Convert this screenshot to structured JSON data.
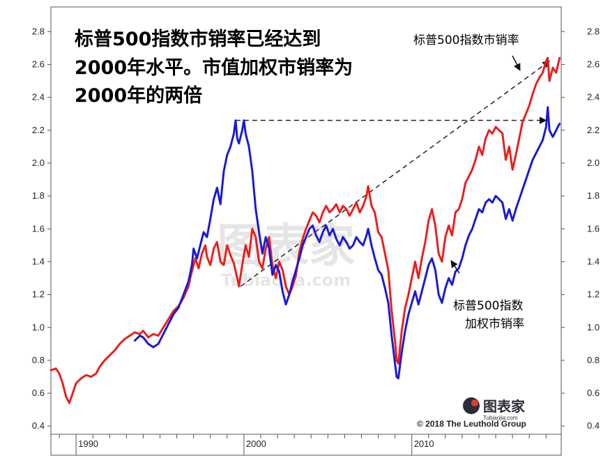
{
  "chart_data": {
    "type": "line",
    "title_lines": [
      "标普500指数市销率已经达到",
      "2000年水平。市值加权市销率为",
      "2000年的两倍"
    ],
    "annotations": {
      "red_label": "标普500指数市销率",
      "blue_label_line1": "标普500指数",
      "blue_label_line2": "加权市销率"
    },
    "copyright": "© 2018 The Leuthold Group",
    "watermark": {
      "brand": "图表家",
      "url": "Tubiaojia.com"
    },
    "xlim": [
      1988.5,
      2018.9
    ],
    "ylim": [
      0.35,
      2.95
    ],
    "y_ticks": [
      0.4,
      0.6,
      0.8,
      1.0,
      1.2,
      1.4,
      1.6,
      1.8,
      2.0,
      2.2,
      2.4,
      2.6,
      2.8
    ],
    "x_tick_labels": [
      {
        "year": 1990,
        "label": "1990"
      },
      {
        "year": 2000,
        "label": "2000"
      },
      {
        "year": 2010,
        "label": "2010"
      }
    ],
    "grid": false,
    "colors": {
      "red_series": "#e8201d",
      "blue_series": "#1a1ad6",
      "reference_lines": "#222222"
    },
    "series": [
      {
        "key": "red",
        "points": [
          [
            1988.5,
            0.74
          ],
          [
            1988.8,
            0.75
          ],
          [
            1989.0,
            0.72
          ],
          [
            1989.2,
            0.66
          ],
          [
            1989.4,
            0.58
          ],
          [
            1989.6,
            0.54
          ],
          [
            1989.8,
            0.6
          ],
          [
            1990.0,
            0.66
          ],
          [
            1990.3,
            0.69
          ],
          [
            1990.6,
            0.71
          ],
          [
            1990.9,
            0.7
          ],
          [
            1991.2,
            0.72
          ],
          [
            1991.4,
            0.76
          ],
          [
            1991.7,
            0.8
          ],
          [
            1992.0,
            0.83
          ],
          [
            1992.3,
            0.86
          ],
          [
            1992.6,
            0.9
          ],
          [
            1992.9,
            0.93
          ],
          [
            1993.2,
            0.95
          ],
          [
            1993.5,
            0.97
          ],
          [
            1993.8,
            0.96
          ],
          [
            1994.0,
            0.98
          ],
          [
            1994.3,
            0.94
          ],
          [
            1994.6,
            0.96
          ],
          [
            1994.9,
            0.95
          ],
          [
            1995.2,
            1.0
          ],
          [
            1995.5,
            1.05
          ],
          [
            1995.8,
            1.1
          ],
          [
            1996.1,
            1.13
          ],
          [
            1996.4,
            1.18
          ],
          [
            1996.7,
            1.25
          ],
          [
            1996.8,
            1.3
          ],
          [
            1997.0,
            1.38
          ],
          [
            1997.1,
            1.42
          ],
          [
            1997.3,
            1.36
          ],
          [
            1997.5,
            1.45
          ],
          [
            1997.7,
            1.5
          ],
          [
            1997.8,
            1.43
          ],
          [
            1998.0,
            1.38
          ],
          [
            1998.2,
            1.48
          ],
          [
            1998.4,
            1.52
          ],
          [
            1998.6,
            1.4
          ],
          [
            1998.8,
            1.38
          ],
          [
            1999.0,
            1.5
          ],
          [
            1999.2,
            1.44
          ],
          [
            1999.4,
            1.39
          ],
          [
            1999.6,
            1.3
          ],
          [
            1999.7,
            1.25
          ],
          [
            1999.9,
            1.38
          ],
          [
            2000.1,
            1.5
          ],
          [
            2000.3,
            1.43
          ],
          [
            2000.5,
            1.6
          ],
          [
            2000.7,
            1.55
          ],
          [
            2000.9,
            1.4
          ],
          [
            2001.1,
            1.36
          ],
          [
            2001.3,
            1.48
          ],
          [
            2001.5,
            1.55
          ],
          [
            2001.7,
            1.38
          ],
          [
            2001.9,
            1.3
          ],
          [
            2002.1,
            1.4
          ],
          [
            2002.3,
            1.35
          ],
          [
            2002.5,
            1.25
          ],
          [
            2002.7,
            1.2
          ],
          [
            2002.9,
            1.25
          ],
          [
            2003.1,
            1.32
          ],
          [
            2003.3,
            1.46
          ],
          [
            2003.5,
            1.54
          ],
          [
            2003.7,
            1.6
          ],
          [
            2003.9,
            1.65
          ],
          [
            2004.1,
            1.7
          ],
          [
            2004.3,
            1.68
          ],
          [
            2004.5,
            1.64
          ],
          [
            2004.7,
            1.7
          ],
          [
            2004.9,
            1.74
          ],
          [
            2005.1,
            1.7
          ],
          [
            2005.3,
            1.72
          ],
          [
            2005.5,
            1.75
          ],
          [
            2005.7,
            1.7
          ],
          [
            2005.9,
            1.74
          ],
          [
            2006.1,
            1.72
          ],
          [
            2006.3,
            1.68
          ],
          [
            2006.5,
            1.72
          ],
          [
            2006.7,
            1.76
          ],
          [
            2006.9,
            1.7
          ],
          [
            2007.1,
            1.74
          ],
          [
            2007.3,
            1.8
          ],
          [
            2007.4,
            1.86
          ],
          [
            2007.6,
            1.74
          ],
          [
            2007.8,
            1.7
          ],
          [
            2008.0,
            1.58
          ],
          [
            2008.2,
            1.55
          ],
          [
            2008.4,
            1.45
          ],
          [
            2008.6,
            1.35
          ],
          [
            2008.8,
            1.1
          ],
          [
            2009.0,
            0.92
          ],
          [
            2009.1,
            0.8
          ],
          [
            2009.2,
            0.78
          ],
          [
            2009.4,
            0.98
          ],
          [
            2009.6,
            1.12
          ],
          [
            2009.8,
            1.2
          ],
          [
            2010.0,
            1.3
          ],
          [
            2010.2,
            1.4
          ],
          [
            2010.4,
            1.3
          ],
          [
            2010.6,
            1.42
          ],
          [
            2010.8,
            1.52
          ],
          [
            2011.0,
            1.65
          ],
          [
            2011.2,
            1.72
          ],
          [
            2011.4,
            1.62
          ],
          [
            2011.6,
            1.45
          ],
          [
            2011.8,
            1.4
          ],
          [
            2012.0,
            1.55
          ],
          [
            2012.2,
            1.62
          ],
          [
            2012.4,
            1.56
          ],
          [
            2012.6,
            1.7
          ],
          [
            2012.8,
            1.72
          ],
          [
            2013.0,
            1.78
          ],
          [
            2013.2,
            1.88
          ],
          [
            2013.4,
            1.92
          ],
          [
            2013.6,
            1.96
          ],
          [
            2013.8,
            2.02
          ],
          [
            2014.0,
            2.1
          ],
          [
            2014.2,
            2.05
          ],
          [
            2014.4,
            2.15
          ],
          [
            2014.6,
            2.2
          ],
          [
            2014.8,
            2.18
          ],
          [
            2015.0,
            2.22
          ],
          [
            2015.2,
            2.2
          ],
          [
            2015.4,
            2.18
          ],
          [
            2015.6,
            2.02
          ],
          [
            2015.8,
            2.1
          ],
          [
            2016.0,
            1.96
          ],
          [
            2016.2,
            2.05
          ],
          [
            2016.4,
            2.15
          ],
          [
            2016.6,
            2.25
          ],
          [
            2016.8,
            2.3
          ],
          [
            2017.0,
            2.35
          ],
          [
            2017.2,
            2.42
          ],
          [
            2017.4,
            2.48
          ],
          [
            2017.6,
            2.52
          ],
          [
            2017.8,
            2.55
          ],
          [
            2018.0,
            2.62
          ],
          [
            2018.1,
            2.64
          ],
          [
            2018.2,
            2.5
          ],
          [
            2018.4,
            2.58
          ],
          [
            2018.6,
            2.55
          ],
          [
            2018.8,
            2.64
          ]
        ]
      },
      {
        "key": "blue",
        "points": [
          [
            1993.5,
            0.92
          ],
          [
            1993.8,
            0.95
          ],
          [
            1994.0,
            0.94
          ],
          [
            1994.3,
            0.9
          ],
          [
            1994.6,
            0.88
          ],
          [
            1994.9,
            0.9
          ],
          [
            1995.2,
            0.96
          ],
          [
            1995.5,
            1.02
          ],
          [
            1995.8,
            1.08
          ],
          [
            1996.1,
            1.12
          ],
          [
            1996.4,
            1.2
          ],
          [
            1996.7,
            1.28
          ],
          [
            1996.9,
            1.38
          ],
          [
            1997.0,
            1.48
          ],
          [
            1997.2,
            1.42
          ],
          [
            1997.4,
            1.5
          ],
          [
            1997.6,
            1.58
          ],
          [
            1997.8,
            1.55
          ],
          [
            1998.0,
            1.66
          ],
          [
            1998.2,
            1.78
          ],
          [
            1998.4,
            1.85
          ],
          [
            1998.6,
            1.75
          ],
          [
            1998.8,
            1.95
          ],
          [
            1999.0,
            2.05
          ],
          [
            1999.2,
            2.1
          ],
          [
            1999.4,
            2.18
          ],
          [
            1999.5,
            2.26
          ],
          [
            1999.6,
            2.15
          ],
          [
            1999.7,
            2.12
          ],
          [
            1999.9,
            2.2
          ],
          [
            2000.0,
            2.26
          ],
          [
            2000.1,
            2.18
          ],
          [
            2000.3,
            2.1
          ],
          [
            2000.5,
            1.95
          ],
          [
            2000.7,
            1.72
          ],
          [
            2000.9,
            1.58
          ],
          [
            2001.1,
            1.45
          ],
          [
            2001.3,
            1.55
          ],
          [
            2001.5,
            1.48
          ],
          [
            2001.7,
            1.32
          ],
          [
            2001.9,
            1.38
          ],
          [
            2002.1,
            1.34
          ],
          [
            2002.3,
            1.22
          ],
          [
            2002.5,
            1.14
          ],
          [
            2002.7,
            1.2
          ],
          [
            2002.9,
            1.28
          ],
          [
            2003.1,
            1.35
          ],
          [
            2003.3,
            1.42
          ],
          [
            2003.5,
            1.5
          ],
          [
            2003.7,
            1.55
          ],
          [
            2003.9,
            1.6
          ],
          [
            2004.1,
            1.62
          ],
          [
            2004.3,
            1.56
          ],
          [
            2004.5,
            1.52
          ],
          [
            2004.7,
            1.58
          ],
          [
            2004.9,
            1.62
          ],
          [
            2005.1,
            1.56
          ],
          [
            2005.3,
            1.6
          ],
          [
            2005.5,
            1.54
          ],
          [
            2005.7,
            1.5
          ],
          [
            2005.9,
            1.55
          ],
          [
            2006.1,
            1.52
          ],
          [
            2006.3,
            1.48
          ],
          [
            2006.5,
            1.5
          ],
          [
            2006.7,
            1.55
          ],
          [
            2006.9,
            1.52
          ],
          [
            2007.1,
            1.5
          ],
          [
            2007.3,
            1.56
          ],
          [
            2007.4,
            1.6
          ],
          [
            2007.6,
            1.5
          ],
          [
            2007.8,
            1.42
          ],
          [
            2008.0,
            1.35
          ],
          [
            2008.2,
            1.32
          ],
          [
            2008.4,
            1.24
          ],
          [
            2008.6,
            1.15
          ],
          [
            2008.8,
            0.95
          ],
          [
            2009.0,
            0.78
          ],
          [
            2009.1,
            0.7
          ],
          [
            2009.2,
            0.69
          ],
          [
            2009.4,
            0.85
          ],
          [
            2009.6,
            0.98
          ],
          [
            2009.8,
            1.08
          ],
          [
            2010.0,
            1.15
          ],
          [
            2010.2,
            1.22
          ],
          [
            2010.4,
            1.14
          ],
          [
            2010.6,
            1.22
          ],
          [
            2010.8,
            1.3
          ],
          [
            2011.0,
            1.38
          ],
          [
            2011.2,
            1.42
          ],
          [
            2011.4,
            1.35
          ],
          [
            2011.6,
            1.2
          ],
          [
            2011.8,
            1.15
          ],
          [
            2012.0,
            1.24
          ],
          [
            2012.2,
            1.3
          ],
          [
            2012.4,
            1.26
          ],
          [
            2012.6,
            1.34
          ],
          [
            2012.8,
            1.36
          ],
          [
            2013.0,
            1.42
          ],
          [
            2013.2,
            1.5
          ],
          [
            2013.4,
            1.56
          ],
          [
            2013.6,
            1.6
          ],
          [
            2013.8,
            1.66
          ],
          [
            2014.0,
            1.72
          ],
          [
            2014.2,
            1.7
          ],
          [
            2014.4,
            1.76
          ],
          [
            2014.6,
            1.78
          ],
          [
            2014.8,
            1.76
          ],
          [
            2015.0,
            1.8
          ],
          [
            2015.2,
            1.78
          ],
          [
            2015.4,
            1.76
          ],
          [
            2015.6,
            1.66
          ],
          [
            2015.8,
            1.72
          ],
          [
            2016.0,
            1.65
          ],
          [
            2016.2,
            1.72
          ],
          [
            2016.4,
            1.78
          ],
          [
            2016.6,
            1.84
          ],
          [
            2016.8,
            1.9
          ],
          [
            2017.0,
            1.96
          ],
          [
            2017.2,
            2.02
          ],
          [
            2017.4,
            2.06
          ],
          [
            2017.6,
            2.1
          ],
          [
            2017.8,
            2.14
          ],
          [
            2018.0,
            2.22
          ],
          [
            2018.1,
            2.34
          ],
          [
            2018.2,
            2.2
          ],
          [
            2018.4,
            2.16
          ],
          [
            2018.6,
            2.2
          ],
          [
            2018.8,
            2.24
          ]
        ]
      }
    ],
    "reference_lines": [
      {
        "style": "dashed",
        "from": [
          1999.5,
          2.26
        ],
        "to": [
          2018.0,
          2.26
        ],
        "arrow_end": true
      },
      {
        "style": "dashed",
        "from": [
          1999.8,
          1.25
        ],
        "to": [
          2018.2,
          2.62
        ],
        "arrow_end": true
      }
    ]
  }
}
